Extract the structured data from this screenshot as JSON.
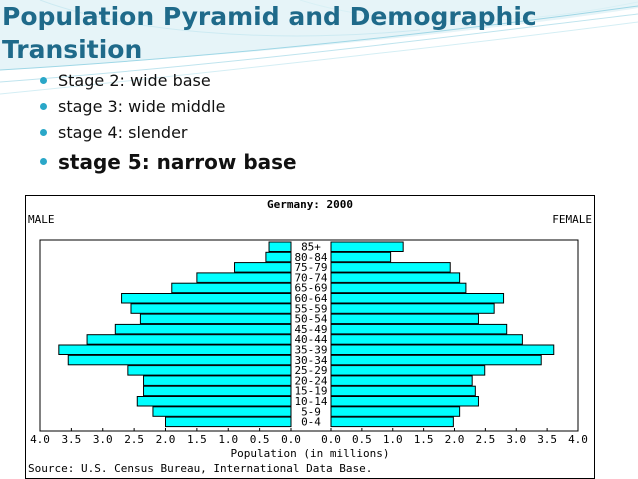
{
  "slide": {
    "title": "Population Pyramid and Demographic Transition",
    "bullets": [
      "Stage 2: wide base",
      "stage 3: wide middle",
      "stage 4: slender",
      "stage 5: narrow base"
    ]
  },
  "colors": {
    "title": "#1f6a8a",
    "bullet": "#2aa7c8",
    "bar_fill": "#00ffff",
    "bar_stroke": "#000000"
  },
  "chart_data": {
    "type": "bar",
    "orientation": "horizontal-pyramid",
    "title": "Germany: 2000",
    "left_label": "MALE",
    "right_label": "FEMALE",
    "xlabel": "Population (in millions)",
    "source": "Source: U.S. Census Bureau, International Data Base.",
    "xlim": [
      0,
      4.0
    ],
    "left_ticks": [
      "4.0",
      "3.5",
      "3.0",
      "2.5",
      "2.0",
      "1.5",
      "1.0",
      "0.5",
      "0.0"
    ],
    "right_ticks": [
      "0.0",
      "0.5",
      "1.0",
      "1.5",
      "2.0",
      "2.5",
      "3.0",
      "3.5",
      "4.0"
    ],
    "categories": [
      "85+",
      "80-84",
      "75-79",
      "70-74",
      "65-69",
      "60-64",
      "55-59",
      "50-54",
      "45-49",
      "40-44",
      "35-39",
      "30-34",
      "25-29",
      "20-24",
      "15-19",
      "10-14",
      "5-9",
      "0-4"
    ],
    "series": [
      {
        "name": "MALE",
        "values": [
          0.35,
          0.4,
          0.9,
          1.5,
          1.9,
          2.7,
          2.55,
          2.4,
          2.8,
          3.25,
          3.7,
          3.55,
          2.6,
          2.35,
          2.35,
          2.45,
          2.2,
          2.0
        ]
      },
      {
        "name": "FEMALE",
        "values": [
          1.15,
          0.95,
          1.9,
          2.05,
          2.15,
          2.75,
          2.6,
          2.35,
          2.8,
          3.05,
          3.55,
          3.35,
          2.45,
          2.25,
          2.3,
          2.35,
          2.05,
          1.95
        ]
      }
    ]
  }
}
